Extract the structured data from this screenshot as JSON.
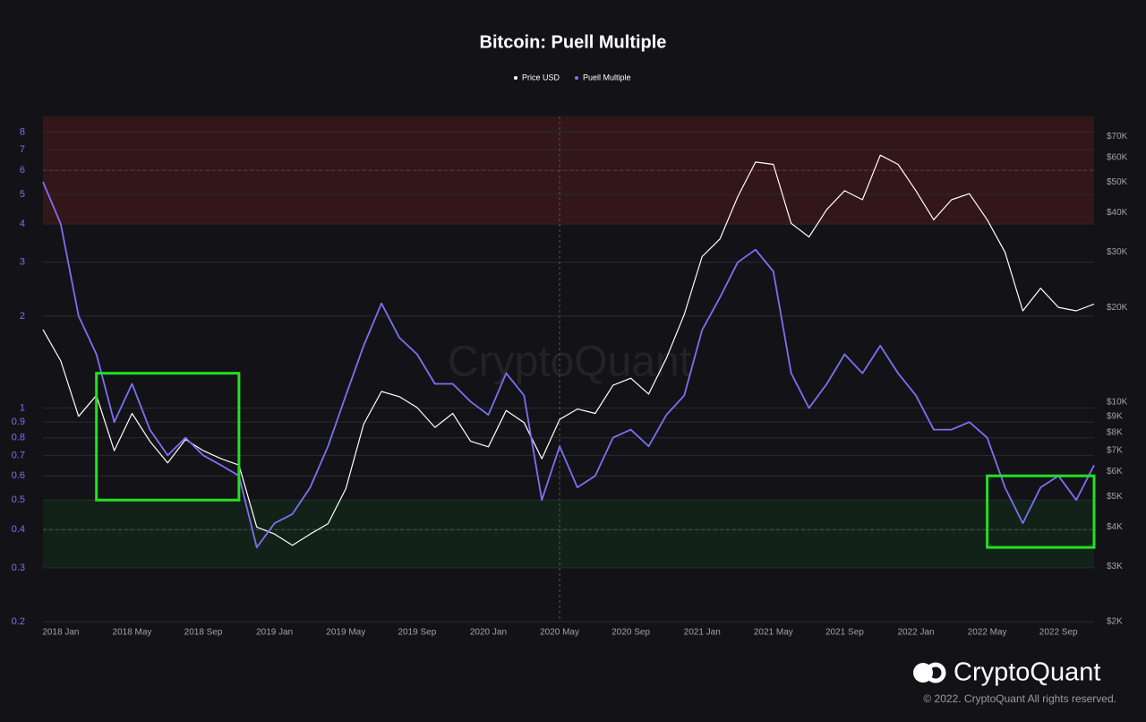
{
  "chart_data": {
    "type": "line",
    "title": "Bitcoin: Puell Multiple",
    "x": [
      "2017-12",
      "2018-01",
      "2018-02",
      "2018-03",
      "2018-04",
      "2018-05",
      "2018-06",
      "2018-07",
      "2018-08",
      "2018-09",
      "2018-10",
      "2018-11",
      "2018-12",
      "2019-01",
      "2019-02",
      "2019-03",
      "2019-04",
      "2019-05",
      "2019-06",
      "2019-07",
      "2019-08",
      "2019-09",
      "2019-10",
      "2019-11",
      "2019-12",
      "2020-01",
      "2020-02",
      "2020-03",
      "2020-04",
      "2020-05",
      "2020-06",
      "2020-07",
      "2020-08",
      "2020-09",
      "2020-10",
      "2020-11",
      "2020-12",
      "2021-01",
      "2021-02",
      "2021-03",
      "2021-04",
      "2021-05",
      "2021-06",
      "2021-07",
      "2021-08",
      "2021-09",
      "2021-10",
      "2021-11",
      "2021-12",
      "2022-01",
      "2022-02",
      "2022-03",
      "2022-04",
      "2022-05",
      "2022-06",
      "2022-07",
      "2022-08",
      "2022-09",
      "2022-10",
      "2022-11"
    ],
    "series": [
      {
        "name": "Price USD",
        "color": "#ffffff",
        "axis": "y2",
        "values": [
          17000,
          13500,
          9000,
          10500,
          7000,
          9200,
          7500,
          6400,
          7600,
          7000,
          6600,
          6300,
          4000,
          3800,
          3500,
          3800,
          4100,
          5300,
          8500,
          10800,
          10400,
          9600,
          8300,
          9200,
          7500,
          7200,
          9400,
          8600,
          6600,
          8800,
          9500,
          9200,
          11300,
          11900,
          10600,
          13800,
          19000,
          29000,
          33000,
          45000,
          58000,
          57000,
          37000,
          33500,
          41000,
          47000,
          44000,
          61000,
          57000,
          47000,
          38000,
          44000,
          46000,
          38000,
          30000,
          19500,
          23000,
          20000,
          19500,
          20500
        ]
      },
      {
        "name": "Puell Multiple",
        "color": "#7f6ff2",
        "values": [
          5.5,
          4.0,
          2.0,
          1.5,
          0.9,
          1.2,
          0.85,
          0.7,
          0.8,
          0.7,
          0.65,
          0.6,
          0.35,
          0.42,
          0.45,
          0.55,
          0.75,
          1.1,
          1.6,
          2.2,
          1.7,
          1.5,
          1.2,
          1.2,
          1.05,
          0.95,
          1.3,
          1.1,
          0.5,
          0.75,
          0.55,
          0.6,
          0.8,
          0.85,
          0.75,
          0.95,
          1.1,
          1.8,
          2.3,
          3.0,
          3.3,
          2.8,
          1.3,
          1.0,
          1.2,
          1.5,
          1.3,
          1.6,
          1.3,
          1.1,
          0.85,
          0.85,
          0.9,
          0.8,
          0.55,
          0.42,
          0.55,
          0.6,
          0.5,
          0.65
        ]
      }
    ],
    "xlim": [
      "2017-12",
      "2022-11"
    ],
    "xticks": [
      {
        "value": "2018-01",
        "label": "2018 Jan"
      },
      {
        "value": "2018-05",
        "label": "2018 May"
      },
      {
        "value": "2018-09",
        "label": "2018 Sep"
      },
      {
        "value": "2019-01",
        "label": "2019 Jan"
      },
      {
        "value": "2019-05",
        "label": "2019 May"
      },
      {
        "value": "2019-09",
        "label": "2019 Sep"
      },
      {
        "value": "2020-01",
        "label": "2020 Jan"
      },
      {
        "value": "2020-05",
        "label": "2020 May"
      },
      {
        "value": "2020-09",
        "label": "2020 Sep"
      },
      {
        "value": "2021-01",
        "label": "2021 Jan"
      },
      {
        "value": "2021-05",
        "label": "2021 May"
      },
      {
        "value": "2021-09",
        "label": "2021 Sep"
      },
      {
        "value": "2022-01",
        "label": "2022 Jan"
      },
      {
        "value": "2022-05",
        "label": "2022 May"
      },
      {
        "value": "2022-09",
        "label": "2022 Sep"
      }
    ],
    "ylim": [
      0.2,
      9
    ],
    "yticks": [
      0.2,
      0.3,
      0.4,
      0.5,
      0.6,
      0.7,
      0.8,
      0.9,
      1,
      2,
      3,
      4,
      5,
      6,
      7,
      8
    ],
    "y_log": true,
    "y2lim": [
      2000,
      81000
    ],
    "y2ticks": [
      {
        "value": 2000,
        "label": "$2K"
      },
      {
        "value": 3000,
        "label": "$3K"
      },
      {
        "value": 4000,
        "label": "$4K"
      },
      {
        "value": 5000,
        "label": "$5K"
      },
      {
        "value": 6000,
        "label": "$6K"
      },
      {
        "value": 7000,
        "label": "$7K"
      },
      {
        "value": 8000,
        "label": "$8K"
      },
      {
        "value": 9000,
        "label": "$9K"
      },
      {
        "value": 10000,
        "label": "$10K"
      },
      {
        "value": 20000,
        "label": "$20K"
      },
      {
        "value": 30000,
        "label": "$30K"
      },
      {
        "value": 40000,
        "label": "$40K"
      },
      {
        "value": 50000,
        "label": "$50K"
      },
      {
        "value": 60000,
        "label": "$60K"
      },
      {
        "value": 70000,
        "label": "$70K"
      }
    ],
    "y2_log": true,
    "grid": true,
    "legend": "top",
    "bands": [
      {
        "range": [
          4,
          9
        ],
        "color": "#3a1717"
      },
      {
        "range": [
          0.3,
          0.5
        ],
        "color": "#142619"
      }
    ],
    "reference_lines": [
      6,
      0.4
    ],
    "vlines": [
      "2020-05"
    ],
    "highlights": [
      {
        "x": [
          "2018-03",
          "2018-11"
        ],
        "y": [
          0.5,
          1.3
        ],
        "color": "#22e022"
      },
      {
        "x": [
          "2022-05",
          "2022-11"
        ],
        "y": [
          0.35,
          0.6
        ],
        "color": "#22e022"
      }
    ],
    "watermark": "CryptoQuant",
    "copyright": "© 2022. CryptoQuant All rights reserved."
  }
}
